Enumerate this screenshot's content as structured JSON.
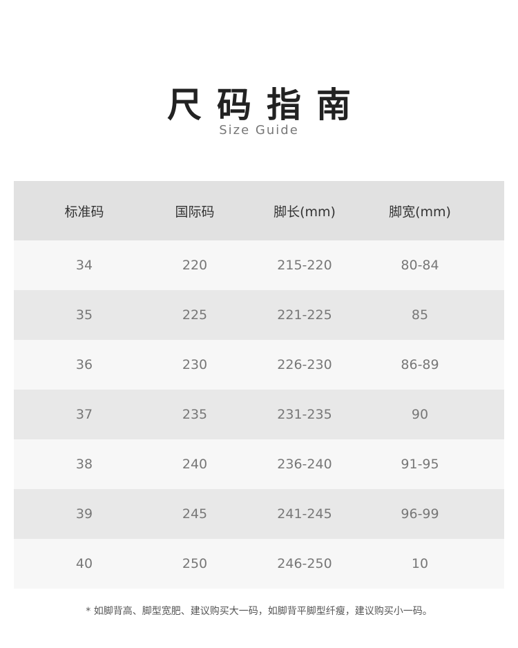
{
  "title": "尺码指南",
  "subtitle": "Size Guide",
  "table": {
    "headers": [
      "标准码",
      "国际码",
      "脚长(mm)",
      "脚宽(mm)"
    ],
    "rows": [
      [
        "34",
        "220",
        "215-220",
        "80-84"
      ],
      [
        "35",
        "225",
        "221-225",
        "85"
      ],
      [
        "36",
        "230",
        "226-230",
        "86-89"
      ],
      [
        "37",
        "235",
        "231-235",
        "90"
      ],
      [
        "38",
        "240",
        "236-240",
        "91-95"
      ],
      [
        "39",
        "245",
        "241-245",
        "96-99"
      ],
      [
        "40",
        "250",
        "246-250",
        "10"
      ]
    ]
  },
  "note": "* 如脚背高、脚型宽肥、建议购买大一码，如脚背平脚型纤瘦，建议购买小一码。"
}
